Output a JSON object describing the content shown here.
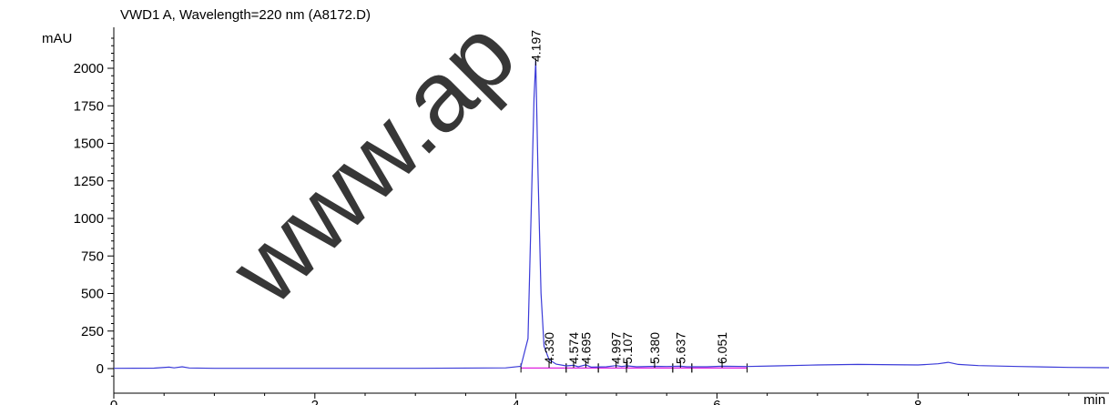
{
  "colors": {
    "trace": "#3a3ad8",
    "baseline": "#e020e0",
    "title": "#2a2ad6",
    "axis": "#000000"
  },
  "chart_data": {
    "type": "line",
    "title": "VWD1 A, Wavelength=220 nm (A8172.D)",
    "xlabel": "min",
    "ylabel": "mAU",
    "xlim": [
      0,
      9.9
    ],
    "ylim": [
      -75,
      2250
    ],
    "x_ticks": [
      0,
      2,
      4,
      6,
      8
    ],
    "y_ticks": [
      0,
      250,
      500,
      750,
      1000,
      1250,
      1500,
      1750,
      2000
    ],
    "grid": false,
    "series": [
      {
        "x": [
          0,
          0.4,
          0.55,
          0.6,
          0.68,
          0.75,
          1.0,
          2.0,
          3.0,
          3.9,
          4.05,
          4.12,
          4.15,
          4.18,
          4.197,
          4.22,
          4.25,
          4.28,
          4.33,
          4.4,
          4.5,
          4.574,
          4.62,
          4.695,
          4.75,
          4.9,
          4.997,
          5.05,
          5.107,
          5.2,
          5.38,
          5.5,
          5.637,
          5.7,
          5.9,
          6.051,
          6.3,
          6.6,
          7.0,
          7.4,
          8.0,
          8.2,
          8.3,
          8.4,
          8.6,
          9.0,
          9.5,
          9.9
        ],
        "y": [
          2,
          3,
          10,
          5,
          12,
          4,
          2,
          2,
          2,
          5,
          15,
          200,
          1000,
          1800,
          2050,
          1300,
          500,
          150,
          60,
          30,
          18,
          22,
          12,
          25,
          10,
          12,
          20,
          14,
          18,
          12,
          15,
          14,
          16,
          12,
          12,
          16,
          14,
          18,
          24,
          28,
          24,
          32,
          42,
          28,
          20,
          14,
          8,
          6
        ]
      }
    ],
    "peaks": [
      {
        "rt": "4.197",
        "x": 4.197
      },
      {
        "rt": "4.330",
        "x": 4.33
      },
      {
        "rt": "4.574",
        "x": 4.574
      },
      {
        "rt": "4.695",
        "x": 4.695
      },
      {
        "rt": "4.997",
        "x": 4.997
      },
      {
        "rt": "5.107",
        "x": 5.107
      },
      {
        "rt": "5.380",
        "x": 5.38
      },
      {
        "rt": "5.637",
        "x": 5.637
      },
      {
        "rt": "6.051",
        "x": 6.051
      }
    ],
    "baseline_segments": [
      [
        4.05,
        4.5
      ],
      [
        4.5,
        4.82
      ],
      [
        4.82,
        5.1
      ],
      [
        5.1,
        5.56
      ],
      [
        5.56,
        5.75
      ],
      [
        5.75,
        6.3
      ]
    ],
    "watermark": "www.ap"
  }
}
